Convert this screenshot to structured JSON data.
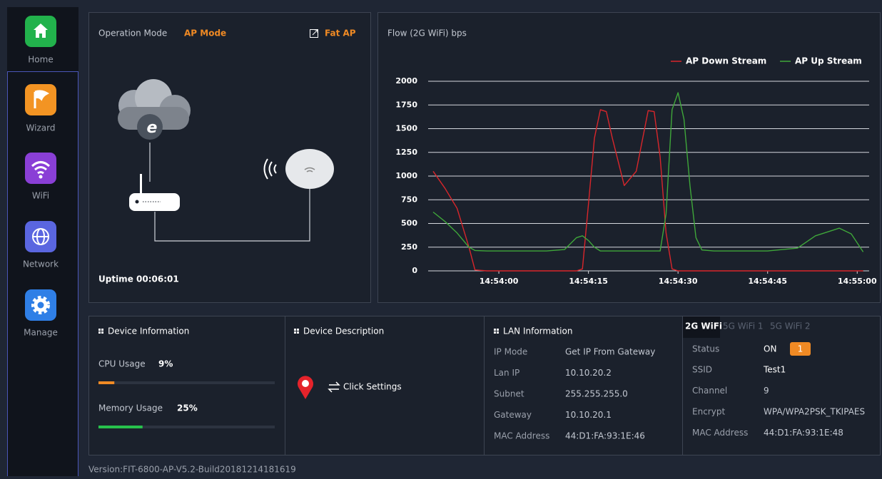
{
  "nav": [
    {
      "label": "Home"
    },
    {
      "label": "Wizard"
    },
    {
      "label": "WiFi"
    },
    {
      "label": "Network"
    },
    {
      "label": "Manage"
    }
  ],
  "operation": {
    "label": "Operation Mode",
    "mode": "AP Mode",
    "link": "Fat AP",
    "uptime": "Uptime 00:06:01"
  },
  "chart_data": {
    "type": "line",
    "title": "Flow (2G WiFi) bps",
    "legend": "upper right",
    "grid": true,
    "x": [
      "14:53:49",
      "14:53:51",
      "14:53:53",
      "14:53:55",
      "14:53:56",
      "14:53:58",
      "14:54:00",
      "14:54:04",
      "14:54:08",
      "14:54:11",
      "14:54:13",
      "14:54:14",
      "14:54:15",
      "14:54:16",
      "14:54:17",
      "14:54:18",
      "14:54:19",
      "14:54:21",
      "14:54:23",
      "14:54:25",
      "14:54:26",
      "14:54:27",
      "14:54:28",
      "14:54:29",
      "14:54:30",
      "14:54:31",
      "14:54:32",
      "14:54:33",
      "14:54:34",
      "14:54:36",
      "14:54:40",
      "14:54:45",
      "14:54:50",
      "14:54:53",
      "14:54:57",
      "14:54:59",
      "14:55:01"
    ],
    "series": [
      {
        "name": "AP Down Stream",
        "color": "#d9262b",
        "values": [
          1050,
          870,
          660,
          250,
          10,
          0,
          0,
          0,
          0,
          0,
          0,
          20,
          700,
          1400,
          1700,
          1680,
          1400,
          900,
          1050,
          1690,
          1680,
          1200,
          400,
          20,
          0,
          0,
          0,
          0,
          0,
          0,
          0,
          0,
          0,
          0,
          0,
          0,
          0
        ]
      },
      {
        "name": "AP Up Stream",
        "color": "#3fa73a",
        "values": [
          620,
          520,
          400,
          250,
          215,
          210,
          210,
          210,
          210,
          225,
          350,
          370,
          320,
          250,
          210,
          210,
          210,
          210,
          210,
          210,
          210,
          210,
          600,
          1700,
          1880,
          1600,
          900,
          350,
          220,
          210,
          210,
          210,
          240,
          370,
          450,
          390,
          200
        ]
      }
    ],
    "xlim": [
      "14:53:49",
      "14:55:02"
    ],
    "xticks": [
      "14:54:00",
      "14:54:15",
      "14:54:30",
      "14:54:45",
      "14:55:00"
    ],
    "ylim": [
      0,
      2000
    ],
    "yticks": [
      0,
      250,
      500,
      750,
      1000,
      1250,
      1500,
      1750,
      2000
    ]
  },
  "device_info": {
    "title": "Device Information",
    "cpu": {
      "label": "CPU Usage",
      "value": 9,
      "value_label": "9%"
    },
    "memory": {
      "label": "Memory Usage",
      "value": 25,
      "value_label": "25%"
    }
  },
  "device_description": {
    "title": "Device Description",
    "action": "Click Settings"
  },
  "lan": {
    "title": "LAN Information",
    "rows": [
      [
        "IP Mode",
        "Get IP From Gateway"
      ],
      [
        "Lan IP",
        "10.10.20.2"
      ],
      [
        "Subnet",
        "255.255.255.0"
      ],
      [
        "Gateway",
        "10.10.20.1"
      ],
      [
        "MAC Address",
        "44:D1:FA:93:1E:46"
      ]
    ]
  },
  "wifi": {
    "tabs": [
      "2G WiFi",
      "5G WiFi 1",
      "5G WiFi 2"
    ],
    "status_label": "Status",
    "status": "ON",
    "badge": 1,
    "rows": [
      [
        "SSID",
        "Test1"
      ],
      [
        "Channel",
        9
      ],
      [
        "Encrypt",
        "WPA/WPA2PSK_TKIPAES"
      ],
      [
        "MAC Address",
        "44:D1:FA:93:1E:48"
      ]
    ]
  },
  "footer": "Version:FIT-6800-AP-V5.2-Build20181214181619"
}
